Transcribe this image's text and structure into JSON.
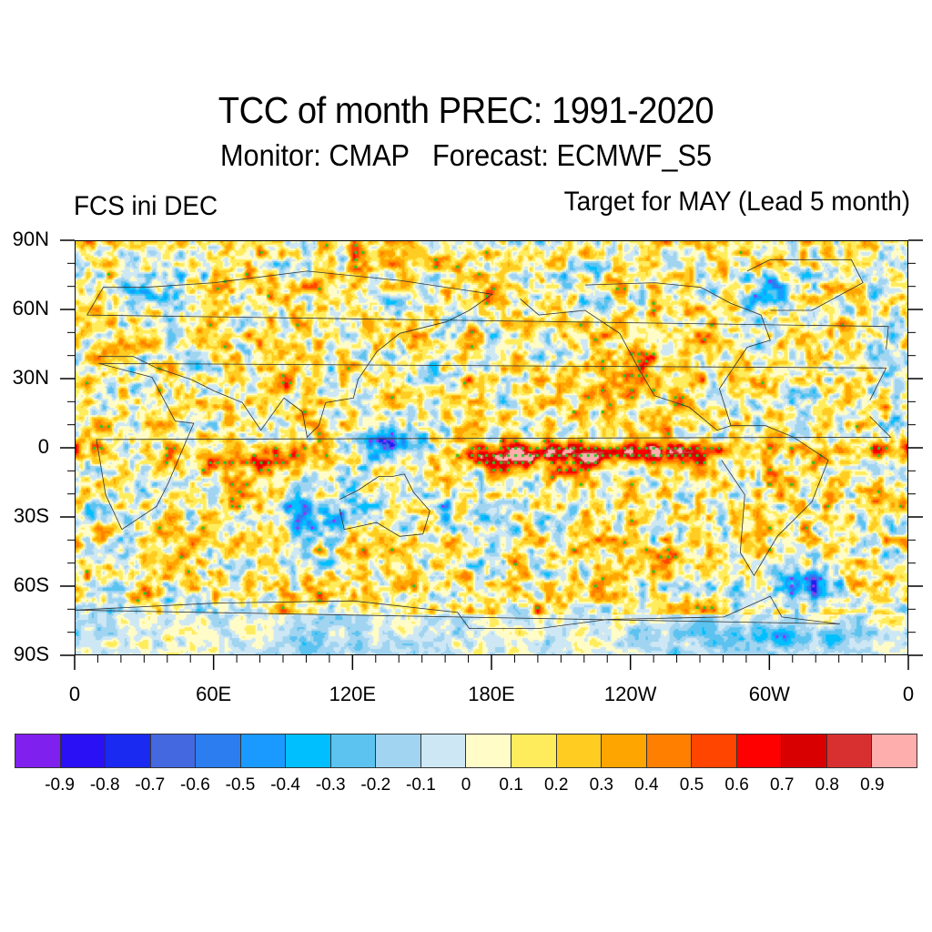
{
  "header": {
    "title": "TCC of month PREC: 1991-2020",
    "subtitle": "Monitor: CMAP   Forecast: ECMWF_S5",
    "left_label": "FCS ini DEC",
    "right_label": "Target for MAY (Lead 5 month)"
  },
  "map": {
    "projection": "cylindrical equidistant",
    "center_longitude": 180,
    "lon_range": [
      0,
      360
    ],
    "lat_range": [
      -90,
      90
    ],
    "y_ticks": [
      {
        "lat": 90,
        "label": "90N"
      },
      {
        "lat": 60,
        "label": "60N"
      },
      {
        "lat": 30,
        "label": "30N"
      },
      {
        "lat": 0,
        "label": "0"
      },
      {
        "lat": -30,
        "label": "30S"
      },
      {
        "lat": -60,
        "label": "60S"
      },
      {
        "lat": -90,
        "label": "90S"
      }
    ],
    "x_ticks": [
      {
        "lon": 0,
        "label": "0"
      },
      {
        "lon": 60,
        "label": "60E"
      },
      {
        "lon": 120,
        "label": "120E"
      },
      {
        "lon": 180,
        "label": "180E"
      },
      {
        "lon": 240,
        "label": "120W"
      },
      {
        "lon": 300,
        "label": "60W"
      },
      {
        "lon": 360,
        "label": "0"
      }
    ],
    "minor_tick_interval_deg": 10,
    "significance_markers": {
      "positive_color": "#22cc22",
      "negative_color": "#9933ee"
    },
    "notable_features": [
      {
        "region": "Central/East equatorial Pacific",
        "lon": [
          160,
          280
        ],
        "lat": [
          -8,
          5
        ],
        "tcc": 0.85
      },
      {
        "region": "Equatorial Indian Ocean",
        "lon": [
          40,
          110
        ],
        "lat": [
          -12,
          2
        ],
        "tcc": 0.6
      },
      {
        "region": "Equatorial Atlantic",
        "lon": [
          320,
          360
        ],
        "lat": [
          -5,
          5
        ],
        "tcc": 0.55
      },
      {
        "region": "Maritime Continent / West Pacific warm pool",
        "lon": [
          120,
          150
        ],
        "lat": [
          -5,
          5
        ],
        "tcc": -0.6
      },
      {
        "region": "South Atlantic (~60S, 45W)",
        "lon": [
          300,
          330
        ],
        "lat": [
          -65,
          -52
        ],
        "tcc": -0.7
      }
    ]
  },
  "colorbar": {
    "colors": [
      "#8020ee",
      "#2a10f4",
      "#1a2af0",
      "#4468e0",
      "#2b7df0",
      "#1a9aff",
      "#00bfff",
      "#5cc3f0",
      "#a0d4f0",
      "#cde7f5",
      "#fffcc8",
      "#ffec5c",
      "#ffcc22",
      "#ffa500",
      "#ff7f00",
      "#ff4500",
      "#ff0000",
      "#d80000",
      "#d83030",
      "#ffaeae"
    ],
    "labels": [
      "-0.9",
      "-0.8",
      "-0.7",
      "-0.6",
      "-0.5",
      "-0.4",
      "-0.3",
      "-0.2",
      "-0.1",
      "0",
      "0.1",
      "0.2",
      "0.3",
      "0.4",
      "0.5",
      "0.6",
      "0.7",
      "0.8",
      "0.9"
    ],
    "levels": [
      -0.9,
      -0.8,
      -0.7,
      -0.6,
      -0.5,
      -0.4,
      -0.3,
      -0.2,
      -0.1,
      0,
      0.1,
      0.2,
      0.3,
      0.4,
      0.5,
      0.6,
      0.7,
      0.8,
      0.9
    ]
  }
}
